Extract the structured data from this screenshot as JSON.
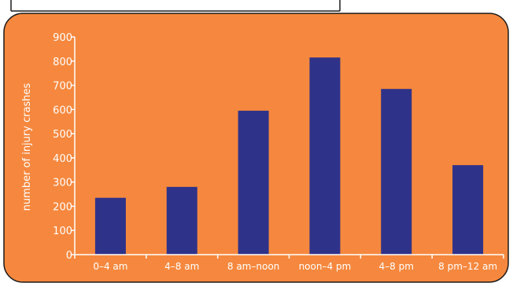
{
  "colors": {
    "panel_fill": "#f5883e",
    "bar_fill": "#2f3289",
    "text": "#ffffff",
    "axis": "#ffffff",
    "frame": "#1a1a1a"
  },
  "chart_data": {
    "type": "bar",
    "title": "",
    "xlabel": "",
    "ylabel": "number of injury crashes",
    "categories": [
      "0–4 am",
      "4–8 am",
      "8 am–noon",
      "noon–4 pm",
      "4–8 pm",
      "8 pm–12 am"
    ],
    "values": [
      235,
      280,
      595,
      815,
      685,
      370
    ],
    "ylim": [
      0,
      900
    ],
    "yticks": [
      0,
      100,
      200,
      300,
      400,
      500,
      600,
      700,
      800,
      900
    ],
    "grid": false,
    "legend": "none"
  }
}
